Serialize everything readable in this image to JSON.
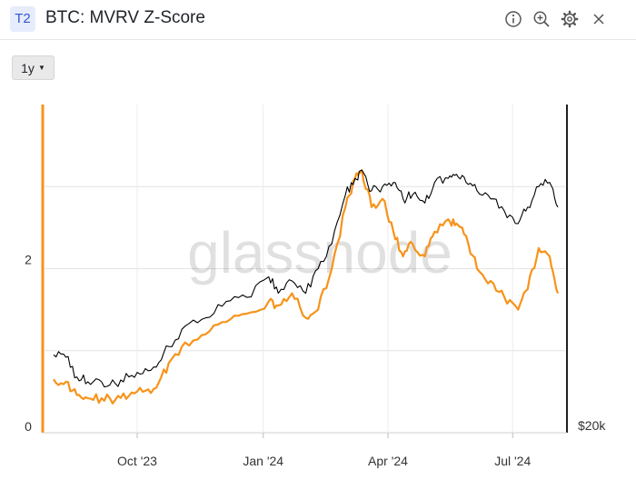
{
  "header": {
    "badge": "T2",
    "title": "BTC: MVRV Z-Score",
    "icons": [
      "info-icon",
      "zoom-in-icon",
      "gear-icon",
      "close-icon"
    ]
  },
  "toolbar": {
    "range_label": "1y"
  },
  "watermark": "glassnode",
  "colors": {
    "price": "#000000",
    "zscore": "#f7931a",
    "left_axis": "#f7931a"
  },
  "chart_data": {
    "type": "line",
    "x_ticks": [
      "Oct '23",
      "Jan '24",
      "Apr '24",
      "Jul '24"
    ],
    "y_left": {
      "ticks": [
        0,
        2
      ],
      "range": [
        0,
        4
      ],
      "grid": [
        1,
        2,
        3
      ]
    },
    "y_right": {
      "ticks": [
        "$20k"
      ]
    },
    "grid": true,
    "series": [
      {
        "key": "zscore",
        "color": "#f7931a",
        "x": [
          "2023-08-01",
          "2023-08-10",
          "2023-08-18",
          "2023-08-26",
          "2023-09-05",
          "2023-09-15",
          "2023-09-25",
          "2023-10-05",
          "2023-10-15",
          "2023-10-24",
          "2023-11-05",
          "2023-11-20",
          "2023-12-05",
          "2023-12-20",
          "2024-01-05",
          "2024-01-12",
          "2024-01-22",
          "2024-02-01",
          "2024-02-10",
          "2024-02-20",
          "2024-03-01",
          "2024-03-08",
          "2024-03-13",
          "2024-03-20",
          "2024-03-28",
          "2024-04-05",
          "2024-04-12",
          "2024-04-19",
          "2024-04-28",
          "2024-05-05",
          "2024-05-15",
          "2024-05-21",
          "2024-05-28",
          "2024-06-05",
          "2024-06-15",
          "2024-06-25",
          "2024-07-05",
          "2024-07-12",
          "2024-07-20",
          "2024-07-28",
          "2024-08-03"
        ],
        "values": [
          0.65,
          0.62,
          0.46,
          0.42,
          0.42,
          0.4,
          0.45,
          0.5,
          0.55,
          0.85,
          1.1,
          1.2,
          1.35,
          1.45,
          1.6,
          1.55,
          1.7,
          1.4,
          1.5,
          2.0,
          2.75,
          3.1,
          3.2,
          2.75,
          2.85,
          2.45,
          2.15,
          2.3,
          2.15,
          2.45,
          2.6,
          2.55,
          2.4,
          2.0,
          1.85,
          1.65,
          1.5,
          1.75,
          2.25,
          2.15,
          1.7
        ]
      },
      {
        "key": "price",
        "color": "#000000",
        "x": [
          "2023-08-01",
          "2023-08-10",
          "2023-08-18",
          "2023-08-26",
          "2023-09-05",
          "2023-09-15",
          "2023-09-25",
          "2023-10-05",
          "2023-10-15",
          "2023-10-24",
          "2023-11-05",
          "2023-11-20",
          "2023-12-05",
          "2023-12-20",
          "2024-01-05",
          "2024-01-12",
          "2024-01-22",
          "2024-02-01",
          "2024-02-10",
          "2024-02-20",
          "2024-03-01",
          "2024-03-08",
          "2024-03-13",
          "2024-03-20",
          "2024-03-28",
          "2024-04-05",
          "2024-04-12",
          "2024-04-19",
          "2024-04-28",
          "2024-05-05",
          "2024-05-15",
          "2024-05-21",
          "2024-05-28",
          "2024-06-05",
          "2024-06-15",
          "2024-06-25",
          "2024-07-05",
          "2024-07-12",
          "2024-07-20",
          "2024-07-28",
          "2024-08-03"
        ],
        "values": [
          0.95,
          0.92,
          0.68,
          0.62,
          0.62,
          0.6,
          0.68,
          0.72,
          0.8,
          1.05,
          1.3,
          1.4,
          1.6,
          1.65,
          1.9,
          1.7,
          1.85,
          1.7,
          2.0,
          2.3,
          2.9,
          3.1,
          3.2,
          2.95,
          3.0,
          3.05,
          2.85,
          2.9,
          2.8,
          3.05,
          3.1,
          3.15,
          3.05,
          2.95,
          2.85,
          2.7,
          2.55,
          2.75,
          3.0,
          3.05,
          2.75
        ]
      }
    ]
  }
}
